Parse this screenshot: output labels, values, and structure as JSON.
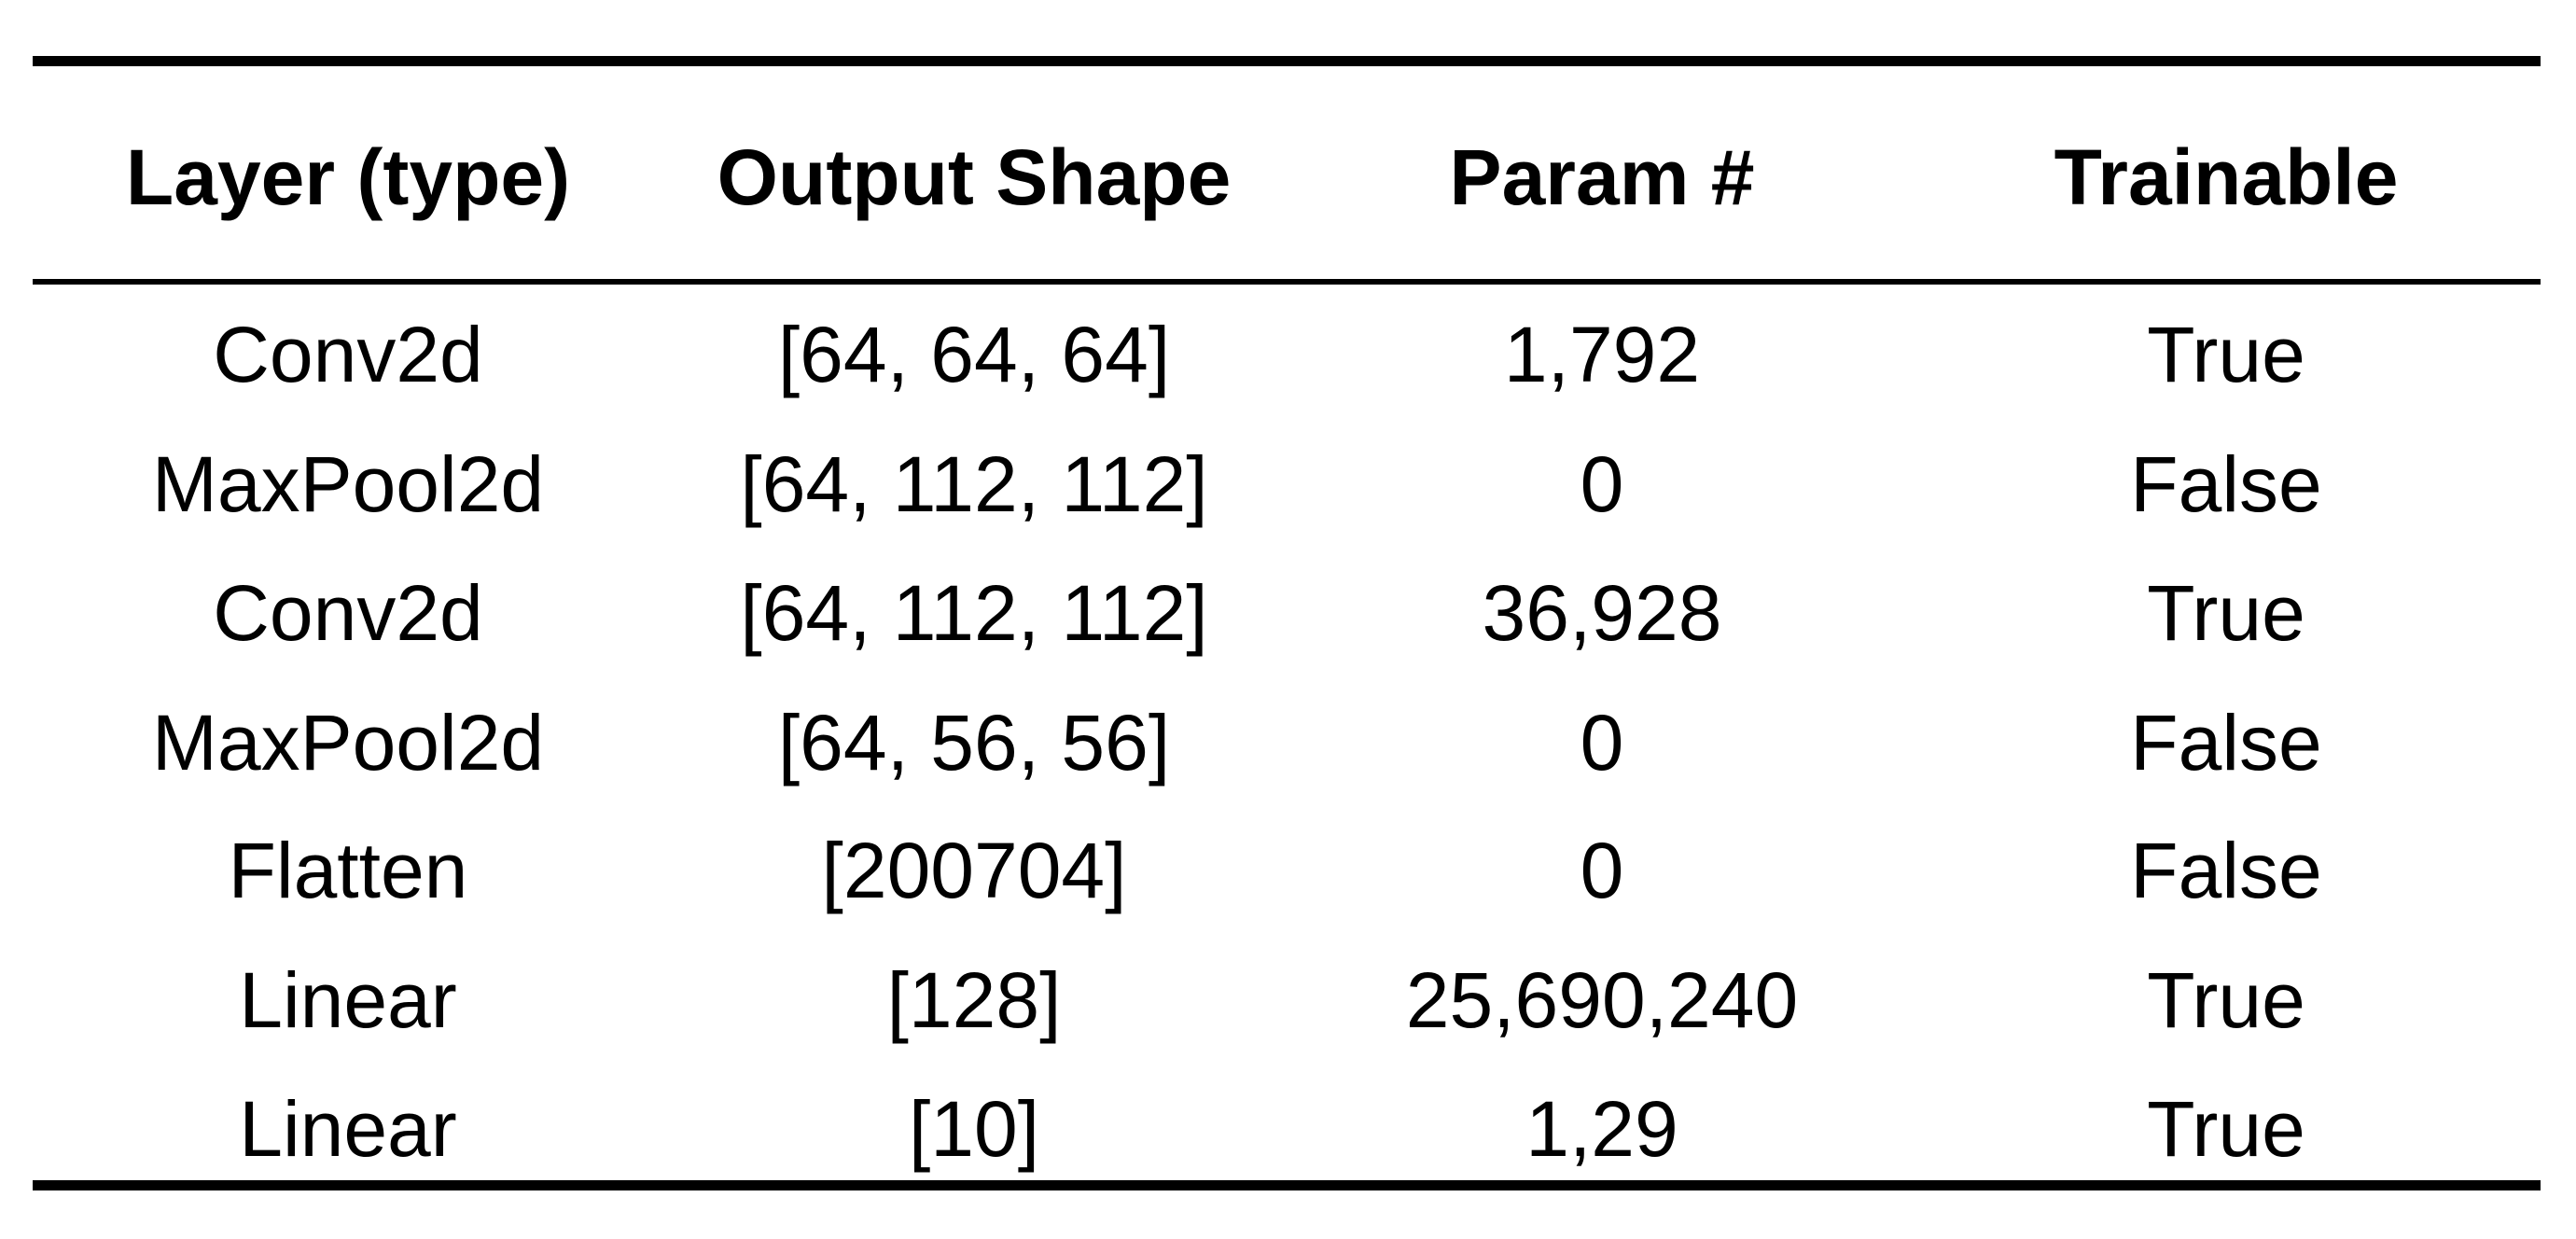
{
  "table": {
    "header": [
      "Layer (type)",
      "Output Shape",
      "Param #",
      "Trainable"
    ],
    "rows": [
      [
        "Conv2d",
        "[64, 64, 64]",
        "1,792",
        "True"
      ],
      [
        "MaxPool2d",
        "[64, 112, 112]",
        "0",
        "False"
      ],
      [
        "Conv2d",
        "[64, 112, 112]",
        "36,928",
        "True"
      ],
      [
        "MaxPool2d",
        "[64, 56, 56]",
        "0",
        "False"
      ],
      [
        "Flatten",
        "[200704]",
        "0",
        "False"
      ],
      [
        "Linear",
        "[128]",
        "25,690,240",
        "True"
      ],
      [
        "Linear",
        "[10]",
        "1,29",
        "True"
      ]
    ]
  }
}
